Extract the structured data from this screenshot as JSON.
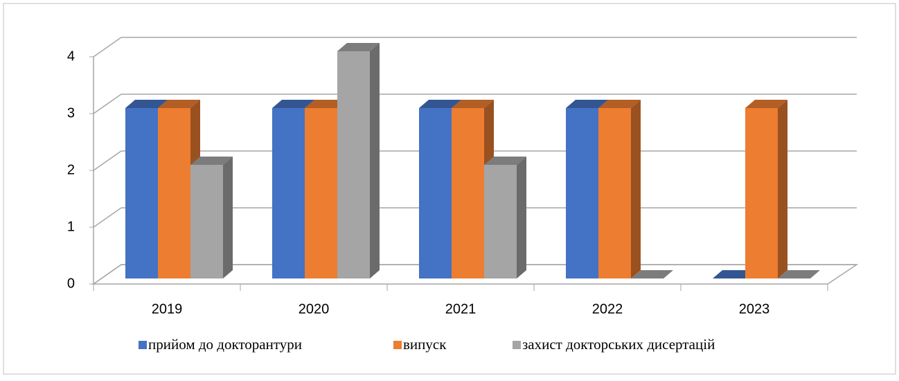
{
  "chart_data": {
    "type": "bar3d",
    "categories": [
      "2019",
      "2020",
      "2021",
      "2022",
      "2023"
    ],
    "series": [
      {
        "name": "прийом до докторантури",
        "color": "#4472c4",
        "values": [
          3,
          3,
          3,
          3,
          0
        ]
      },
      {
        "name": "випуск",
        "color": "#ed7d31",
        "values": [
          3,
          3,
          3,
          3,
          3
        ]
      },
      {
        "name": "захист докторських дисертацій",
        "color": "#a5a5a5",
        "values": [
          2,
          4,
          2,
          0,
          0
        ]
      }
    ],
    "ylim": [
      0,
      4
    ],
    "yticks": [
      0,
      1,
      2,
      3,
      4
    ],
    "grid": true,
    "legend": "bottom"
  }
}
